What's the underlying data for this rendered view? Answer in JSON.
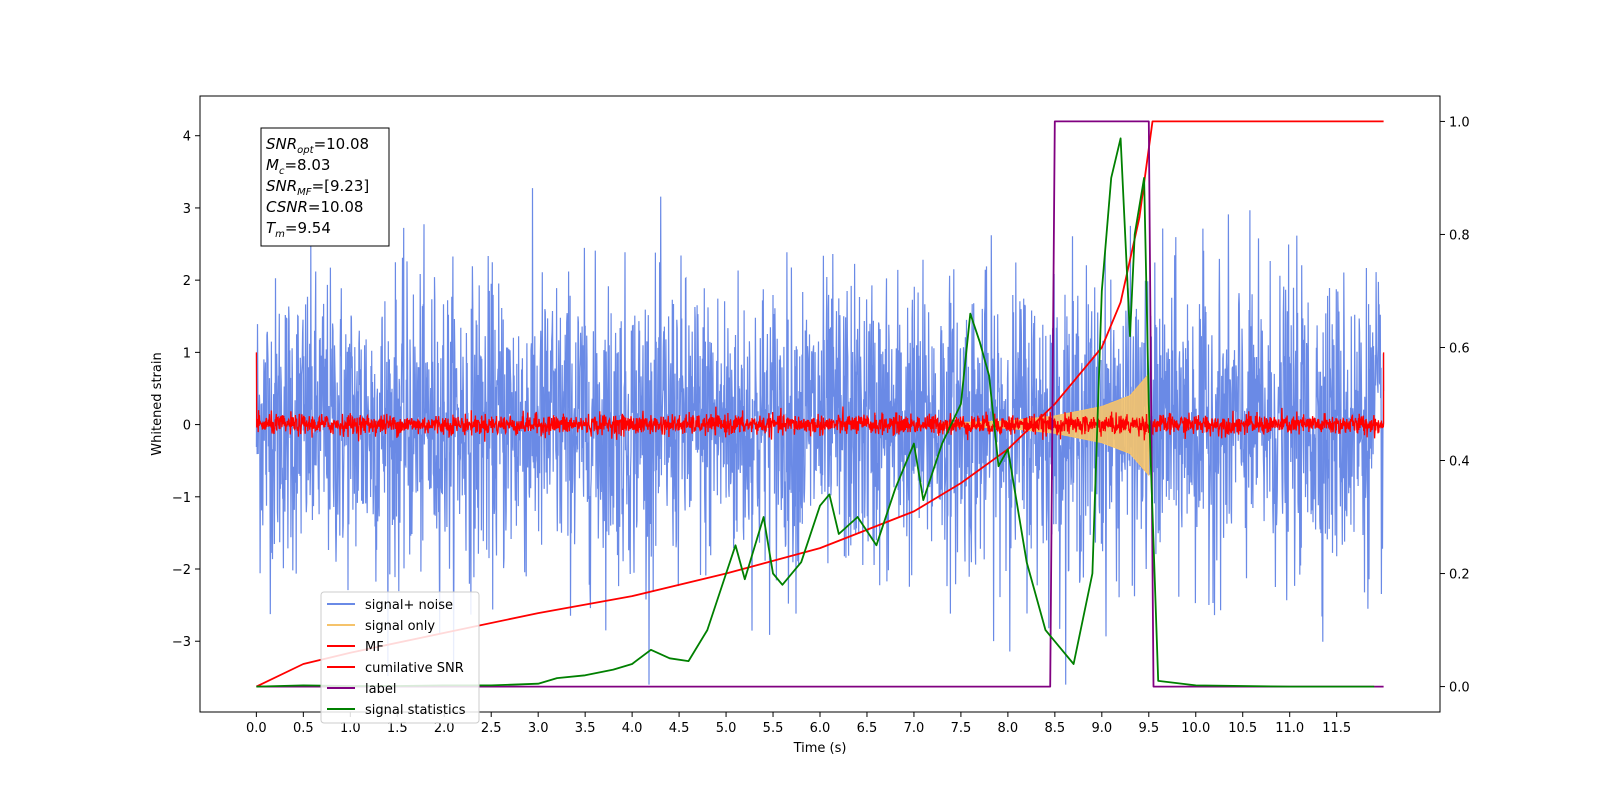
{
  "chart_data": {
    "type": "line",
    "xlabel": "Time (s)",
    "ylabel": "Whitened strain",
    "xlim": [
      -0.6,
      12.6
    ],
    "ylim": [
      -3.98,
      4.55
    ],
    "y2lim": [
      -0.045,
      1.045
    ],
    "x_ticks": [
      "0.0",
      "0.5",
      "1.0",
      "1.5",
      "2.0",
      "2.5",
      "3.0",
      "3.5",
      "4.0",
      "4.5",
      "5.0",
      "5.5",
      "6.0",
      "6.5",
      "7.0",
      "7.5",
      "8.0",
      "8.5",
      "9.0",
      "9.5",
      "10.0",
      "10.5",
      "11.0",
      "11.5"
    ],
    "y_ticks": [
      "4",
      "3",
      "2",
      "1",
      "0",
      "−1",
      "−2",
      "−3"
    ],
    "y2_ticks": [
      "1.0",
      "0.8",
      "0.6",
      "0.4",
      "0.2",
      "0.0"
    ],
    "annotation": {
      "line1": {
        "base": "SNR",
        "sub": "opt",
        "rest": "=10.08"
      },
      "line2": {
        "base": "M",
        "sub": "c",
        "rest": "=8.03"
      },
      "line3": {
        "base": "SNR",
        "sub": "MF",
        "rest": "=[9.23]"
      },
      "line4": {
        "base": "CSNR",
        "rest": "=10.08"
      },
      "line5": {
        "base": "T",
        "sub": "m",
        "rest": "=9.54"
      }
    },
    "legend": [
      {
        "name": "signal+ noise",
        "color": "#6a8ae6"
      },
      {
        "name": "signal only",
        "color": "#f5c36b"
      },
      {
        "name": "MF",
        "color": "#ff0000"
      },
      {
        "name": "cumilative SNR",
        "color": "#ff0000"
      },
      {
        "name": "label",
        "color": "#800080"
      },
      {
        "name": "signal statistics",
        "color": "#008000"
      }
    ],
    "series": [
      {
        "key": "noise",
        "amplitude_sd": 1.0,
        "x_range": [
          0,
          12
        ],
        "color": "#6a8ae6"
      },
      {
        "key": "signal_envelope",
        "points": [
          [
            7.3,
            0.02
          ],
          [
            8.0,
            0.05
          ],
          [
            8.5,
            0.12
          ],
          [
            9.0,
            0.25
          ],
          [
            9.3,
            0.4
          ],
          [
            9.5,
            0.7
          ]
        ],
        "color": "#f5c36b"
      },
      {
        "key": "mf",
        "amplitude_sd": 0.07,
        "start_value": 1.0,
        "end_value": 1.0,
        "color": "#ff0000"
      },
      {
        "key": "cumulative_snr",
        "axis": "right",
        "points": [
          [
            0,
            0
          ],
          [
            0.5,
            0.04
          ],
          [
            1,
            0.06
          ],
          [
            2,
            0.095
          ],
          [
            3,
            0.13
          ],
          [
            4,
            0.16
          ],
          [
            5,
            0.2
          ],
          [
            6,
            0.245
          ],
          [
            7,
            0.31
          ],
          [
            7.5,
            0.36
          ],
          [
            8,
            0.42
          ],
          [
            8.5,
            0.5
          ],
          [
            9,
            0.6
          ],
          [
            9.2,
            0.68
          ],
          [
            9.4,
            0.83
          ],
          [
            9.54,
            1.0
          ],
          [
            12,
            1.0
          ]
        ],
        "color": "#ff0000"
      },
      {
        "key": "label",
        "axis": "right",
        "points": [
          [
            0,
            0
          ],
          [
            8.45,
            0
          ],
          [
            8.5,
            1
          ],
          [
            9.5,
            1
          ],
          [
            9.55,
            0
          ],
          [
            12,
            0
          ]
        ],
        "color": "#800080"
      },
      {
        "key": "signal_statistics",
        "axis": "right",
        "points": [
          [
            0,
            0
          ],
          [
            0.5,
            0.002
          ],
          [
            1,
            0.001
          ],
          [
            1.5,
            0.001
          ],
          [
            2,
            0.002
          ],
          [
            2.5,
            0.002
          ],
          [
            3,
            0.005
          ],
          [
            3.2,
            0.015
          ],
          [
            3.5,
            0.02
          ],
          [
            3.8,
            0.03
          ],
          [
            4,
            0.04
          ],
          [
            4.2,
            0.065
          ],
          [
            4.4,
            0.05
          ],
          [
            4.6,
            0.045
          ],
          [
            4.8,
            0.1
          ],
          [
            5,
            0.2
          ],
          [
            5.1,
            0.25
          ],
          [
            5.2,
            0.19
          ],
          [
            5.4,
            0.3
          ],
          [
            5.5,
            0.2
          ],
          [
            5.6,
            0.18
          ],
          [
            5.8,
            0.22
          ],
          [
            6,
            0.32
          ],
          [
            6.1,
            0.34
          ],
          [
            6.2,
            0.27
          ],
          [
            6.4,
            0.3
          ],
          [
            6.6,
            0.25
          ],
          [
            6.8,
            0.35
          ],
          [
            7,
            0.43
          ],
          [
            7.1,
            0.33
          ],
          [
            7.3,
            0.43
          ],
          [
            7.5,
            0.5
          ],
          [
            7.6,
            0.66
          ],
          [
            7.7,
            0.61
          ],
          [
            7.8,
            0.55
          ],
          [
            7.9,
            0.39
          ],
          [
            8,
            0.42
          ],
          [
            8.1,
            0.32
          ],
          [
            8.2,
            0.22
          ],
          [
            8.4,
            0.1
          ],
          [
            8.6,
            0.06
          ],
          [
            8.7,
            0.04
          ],
          [
            8.9,
            0.2
          ],
          [
            9.0,
            0.7
          ],
          [
            9.1,
            0.9
          ],
          [
            9.2,
            0.97
          ],
          [
            9.3,
            0.62
          ],
          [
            9.35,
            0.8
          ],
          [
            9.45,
            0.9
          ],
          [
            9.5,
            0.5
          ],
          [
            9.6,
            0.01
          ],
          [
            10,
            0.002
          ],
          [
            11,
            0
          ],
          [
            11.9,
            0
          ]
        ],
        "color": "#008000"
      }
    ]
  }
}
